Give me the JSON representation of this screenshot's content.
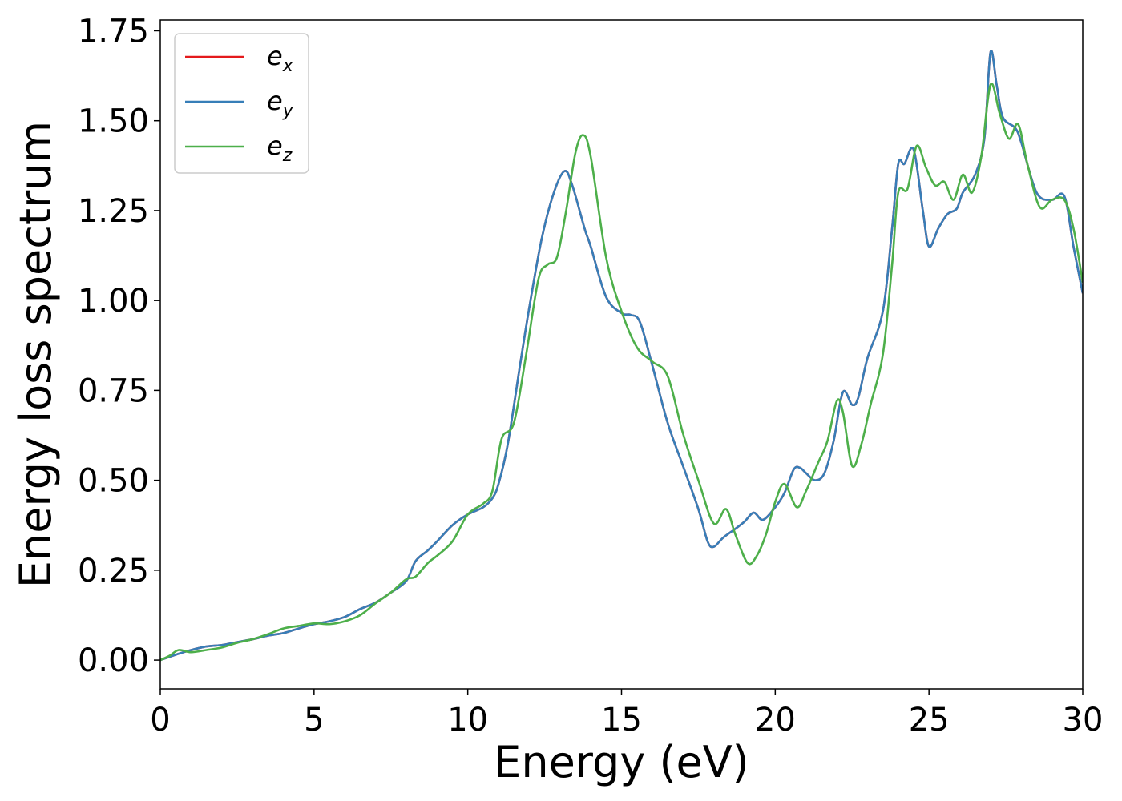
{
  "chart_data": {
    "type": "line",
    "title": "",
    "xlabel": "Energy (eV)",
    "ylabel": "Energy loss spectrum",
    "xlim": [
      0,
      30
    ],
    "ylim": [
      -0.08,
      1.78
    ],
    "x_ticks": [
      0,
      5,
      10,
      15,
      20,
      25,
      30
    ],
    "x_tick_labels": [
      "0",
      "5",
      "10",
      "15",
      "20",
      "25",
      "30"
    ],
    "y_ticks": [
      0,
      0.25,
      0.5,
      0.75,
      1.0,
      1.25,
      1.5,
      1.75
    ],
    "y_tick_labels": [
      "0.00",
      "0.25",
      "0.50",
      "0.75",
      "1.00",
      "1.25",
      "1.50",
      "1.75"
    ],
    "grid": false,
    "legend_position": "top-left",
    "series": [
      {
        "name": "e",
        "subscript": "x",
        "color": "#e41a1c",
        "points": [
          [
            0,
            0
          ],
          [
            0.5,
            0.015
          ],
          [
            1,
            0.028
          ],
          [
            1.5,
            0.038
          ],
          [
            2,
            0.042
          ],
          [
            2.5,
            0.05
          ],
          [
            3,
            0.058
          ],
          [
            3.5,
            0.068
          ],
          [
            4,
            0.075
          ],
          [
            4.5,
            0.088
          ],
          [
            5,
            0.1
          ],
          [
            5.5,
            0.108
          ],
          [
            6,
            0.12
          ],
          [
            6.5,
            0.142
          ],
          [
            7,
            0.16
          ],
          [
            7.5,
            0.188
          ],
          [
            8,
            0.22
          ],
          [
            8.3,
            0.275
          ],
          [
            8.7,
            0.305
          ],
          [
            9,
            0.33
          ],
          [
            9.5,
            0.375
          ],
          [
            10,
            0.405
          ],
          [
            10.5,
            0.425
          ],
          [
            10.8,
            0.45
          ],
          [
            11,
            0.49
          ],
          [
            11.3,
            0.6
          ],
          [
            11.7,
            0.82
          ],
          [
            12,
            0.98
          ],
          [
            12.4,
            1.17
          ],
          [
            12.8,
            1.3
          ],
          [
            13.15,
            1.36
          ],
          [
            13.4,
            1.32
          ],
          [
            13.8,
            1.2
          ],
          [
            14,
            1.15
          ],
          [
            14.5,
            1.01
          ],
          [
            15,
            0.965
          ],
          [
            15.3,
            0.96
          ],
          [
            15.6,
            0.94
          ],
          [
            16,
            0.82
          ],
          [
            16.5,
            0.66
          ],
          [
            17,
            0.54
          ],
          [
            17.5,
            0.42
          ],
          [
            17.8,
            0.33
          ],
          [
            18,
            0.315
          ],
          [
            18.3,
            0.34
          ],
          [
            18.7,
            0.365
          ],
          [
            19,
            0.385
          ],
          [
            19.3,
            0.41
          ],
          [
            19.6,
            0.39
          ],
          [
            20,
            0.425
          ],
          [
            20.3,
            0.465
          ],
          [
            20.6,
            0.53
          ],
          [
            20.8,
            0.535
          ],
          [
            21,
            0.52
          ],
          [
            21.3,
            0.5
          ],
          [
            21.6,
            0.52
          ],
          [
            21.9,
            0.61
          ],
          [
            22.2,
            0.745
          ],
          [
            22.5,
            0.71
          ],
          [
            22.7,
            0.73
          ],
          [
            23,
            0.84
          ],
          [
            23.5,
            0.97
          ],
          [
            23.8,
            1.2
          ],
          [
            24,
            1.38
          ],
          [
            24.2,
            1.38
          ],
          [
            24.5,
            1.42
          ],
          [
            24.8,
            1.25
          ],
          [
            25,
            1.15
          ],
          [
            25.3,
            1.2
          ],
          [
            25.6,
            1.24
          ],
          [
            25.9,
            1.255
          ],
          [
            26.1,
            1.3
          ],
          [
            26.5,
            1.35
          ],
          [
            26.8,
            1.45
          ],
          [
            27,
            1.69
          ],
          [
            27.2,
            1.6
          ],
          [
            27.4,
            1.51
          ],
          [
            27.8,
            1.48
          ],
          [
            28,
            1.44
          ],
          [
            28.5,
            1.3
          ],
          [
            29,
            1.28
          ],
          [
            29.4,
            1.29
          ],
          [
            29.7,
            1.15
          ],
          [
            30,
            1.02
          ]
        ]
      },
      {
        "name": "e",
        "subscript": "y",
        "color": "#377eb8",
        "points": [
          [
            0,
            0
          ],
          [
            0.5,
            0.015
          ],
          [
            1,
            0.028
          ],
          [
            1.5,
            0.038
          ],
          [
            2,
            0.042
          ],
          [
            2.5,
            0.05
          ],
          [
            3,
            0.058
          ],
          [
            3.5,
            0.068
          ],
          [
            4,
            0.075
          ],
          [
            4.5,
            0.088
          ],
          [
            5,
            0.1
          ],
          [
            5.5,
            0.108
          ],
          [
            6,
            0.12
          ],
          [
            6.5,
            0.142
          ],
          [
            7,
            0.16
          ],
          [
            7.5,
            0.188
          ],
          [
            8,
            0.22
          ],
          [
            8.3,
            0.275
          ],
          [
            8.7,
            0.305
          ],
          [
            9,
            0.33
          ],
          [
            9.5,
            0.375
          ],
          [
            10,
            0.405
          ],
          [
            10.5,
            0.425
          ],
          [
            10.8,
            0.45
          ],
          [
            11,
            0.49
          ],
          [
            11.3,
            0.6
          ],
          [
            11.7,
            0.82
          ],
          [
            12,
            0.98
          ],
          [
            12.4,
            1.17
          ],
          [
            12.8,
            1.3
          ],
          [
            13.15,
            1.36
          ],
          [
            13.4,
            1.32
          ],
          [
            13.8,
            1.2
          ],
          [
            14,
            1.15
          ],
          [
            14.5,
            1.01
          ],
          [
            15,
            0.965
          ],
          [
            15.3,
            0.96
          ],
          [
            15.6,
            0.94
          ],
          [
            16,
            0.82
          ],
          [
            16.5,
            0.66
          ],
          [
            17,
            0.54
          ],
          [
            17.5,
            0.42
          ],
          [
            17.8,
            0.33
          ],
          [
            18,
            0.315
          ],
          [
            18.3,
            0.34
          ],
          [
            18.7,
            0.365
          ],
          [
            19,
            0.385
          ],
          [
            19.3,
            0.41
          ],
          [
            19.6,
            0.39
          ],
          [
            20,
            0.425
          ],
          [
            20.3,
            0.465
          ],
          [
            20.6,
            0.53
          ],
          [
            20.8,
            0.535
          ],
          [
            21,
            0.52
          ],
          [
            21.3,
            0.5
          ],
          [
            21.6,
            0.52
          ],
          [
            21.9,
            0.61
          ],
          [
            22.2,
            0.745
          ],
          [
            22.5,
            0.71
          ],
          [
            22.7,
            0.73
          ],
          [
            23,
            0.84
          ],
          [
            23.5,
            0.97
          ],
          [
            23.8,
            1.2
          ],
          [
            24,
            1.38
          ],
          [
            24.2,
            1.38
          ],
          [
            24.5,
            1.42
          ],
          [
            24.8,
            1.25
          ],
          [
            25,
            1.15
          ],
          [
            25.3,
            1.2
          ],
          [
            25.6,
            1.24
          ],
          [
            25.9,
            1.255
          ],
          [
            26.1,
            1.3
          ],
          [
            26.5,
            1.35
          ],
          [
            26.8,
            1.45
          ],
          [
            27,
            1.69
          ],
          [
            27.2,
            1.6
          ],
          [
            27.4,
            1.51
          ],
          [
            27.8,
            1.48
          ],
          [
            28,
            1.44
          ],
          [
            28.5,
            1.3
          ],
          [
            29,
            1.28
          ],
          [
            29.4,
            1.29
          ],
          [
            29.7,
            1.15
          ],
          [
            30,
            1.02
          ]
        ]
      },
      {
        "name": "e",
        "subscript": "z",
        "color": "#4daf4a",
        "points": [
          [
            0,
            0
          ],
          [
            0.3,
            0.012
          ],
          [
            0.6,
            0.028
          ],
          [
            1,
            0.022
          ],
          [
            1.5,
            0.028
          ],
          [
            2,
            0.035
          ],
          [
            2.5,
            0.048
          ],
          [
            3,
            0.058
          ],
          [
            3.5,
            0.072
          ],
          [
            4,
            0.088
          ],
          [
            4.5,
            0.095
          ],
          [
            5,
            0.102
          ],
          [
            5.5,
            0.1
          ],
          [
            6,
            0.108
          ],
          [
            6.5,
            0.125
          ],
          [
            7,
            0.158
          ],
          [
            7.5,
            0.188
          ],
          [
            8,
            0.225
          ],
          [
            8.3,
            0.232
          ],
          [
            8.7,
            0.27
          ],
          [
            9,
            0.29
          ],
          [
            9.5,
            0.33
          ],
          [
            10,
            0.405
          ],
          [
            10.5,
            0.435
          ],
          [
            10.8,
            0.47
          ],
          [
            11.1,
            0.615
          ],
          [
            11.5,
            0.66
          ],
          [
            11.9,
            0.85
          ],
          [
            12.3,
            1.06
          ],
          [
            12.6,
            1.1
          ],
          [
            12.9,
            1.12
          ],
          [
            13.2,
            1.25
          ],
          [
            13.5,
            1.41
          ],
          [
            13.75,
            1.46
          ],
          [
            14,
            1.4
          ],
          [
            14.5,
            1.12
          ],
          [
            15,
            0.97
          ],
          [
            15.5,
            0.87
          ],
          [
            16,
            0.83
          ],
          [
            16.5,
            0.79
          ],
          [
            17,
            0.63
          ],
          [
            17.5,
            0.5
          ],
          [
            18,
            0.38
          ],
          [
            18.4,
            0.42
          ],
          [
            18.7,
            0.35
          ],
          [
            19.1,
            0.27
          ],
          [
            19.4,
            0.29
          ],
          [
            19.7,
            0.35
          ],
          [
            20,
            0.44
          ],
          [
            20.3,
            0.49
          ],
          [
            20.7,
            0.425
          ],
          [
            21,
            0.47
          ],
          [
            21.4,
            0.55
          ],
          [
            21.7,
            0.61
          ],
          [
            22,
            0.72
          ],
          [
            22.2,
            0.69
          ],
          [
            22.5,
            0.54
          ],
          [
            22.8,
            0.6
          ],
          [
            23.1,
            0.71
          ],
          [
            23.5,
            0.85
          ],
          [
            23.8,
            1.1
          ],
          [
            24,
            1.3
          ],
          [
            24.3,
            1.31
          ],
          [
            24.6,
            1.43
          ],
          [
            24.9,
            1.37
          ],
          [
            25.2,
            1.32
          ],
          [
            25.5,
            1.33
          ],
          [
            25.8,
            1.28
          ],
          [
            26.1,
            1.35
          ],
          [
            26.4,
            1.3
          ],
          [
            26.7,
            1.4
          ],
          [
            27,
            1.6
          ],
          [
            27.3,
            1.52
          ],
          [
            27.6,
            1.45
          ],
          [
            27.9,
            1.49
          ],
          [
            28.2,
            1.38
          ],
          [
            28.6,
            1.26
          ],
          [
            29,
            1.28
          ],
          [
            29.4,
            1.28
          ],
          [
            29.7,
            1.2
          ],
          [
            30,
            1.05
          ]
        ]
      }
    ]
  }
}
